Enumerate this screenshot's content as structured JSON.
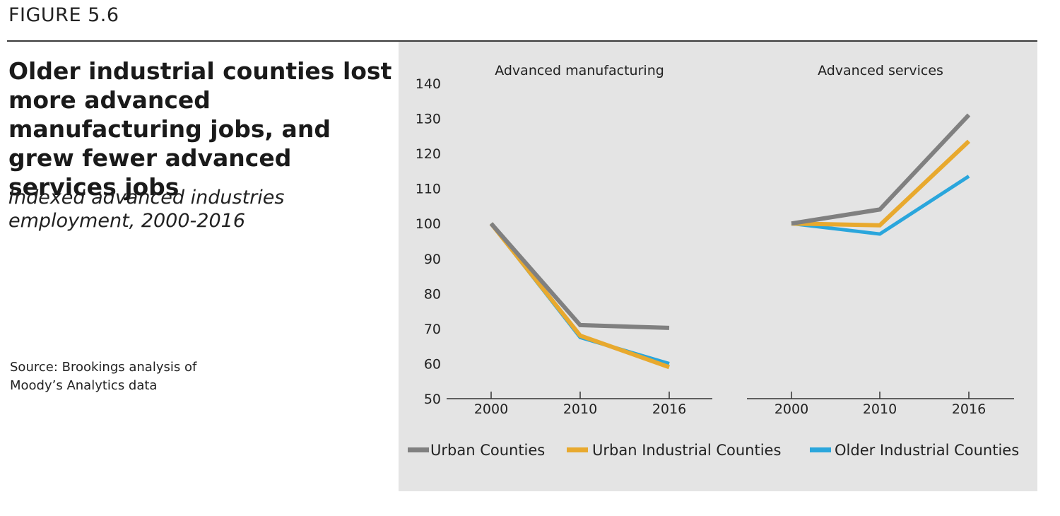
{
  "figure_label": "FIGURE 5.6",
  "title": "Older industrial counties lost more advanced manufacturing jobs, and grew fewer advanced services jobs",
  "subtitle": "Indexed advanced industries employment, 2000-2016",
  "source": "Source: Brookings analysis of Moody’s Analytics data",
  "colors": {
    "urban": "#808080",
    "urban_industrial": "#e8a92e",
    "older_industrial": "#2aa6dc",
    "panel_bg": "#e4e4e4",
    "axis": "#333333"
  },
  "chart_data": {
    "type": "line",
    "ylim": [
      50,
      140
    ],
    "yticks": [
      50,
      60,
      70,
      80,
      90,
      100,
      110,
      120,
      130,
      140
    ],
    "legend": {
      "position": "bottom",
      "entries": [
        "Urban Counties",
        "Urban Industrial Counties",
        "Older Industrial Counties"
      ]
    },
    "panels": [
      {
        "title": "Advanced manufacturing",
        "x": [
          "2000",
          "2010",
          "2016"
        ],
        "series": [
          {
            "name": "Urban Counties",
            "color_key": "urban",
            "values": [
              100,
              71,
              70.2
            ]
          },
          {
            "name": "Urban Industrial Counties",
            "color_key": "urban_industrial",
            "values": [
              100,
              68,
              59
            ]
          },
          {
            "name": "Older Industrial Counties",
            "color_key": "older_industrial",
            "values": [
              100,
              67.5,
              60
            ]
          }
        ]
      },
      {
        "title": "Advanced services",
        "x": [
          "2000",
          "2010",
          "2016"
        ],
        "series": [
          {
            "name": "Urban Counties",
            "color_key": "urban",
            "values": [
              100,
              104,
              131
            ]
          },
          {
            "name": "Urban Industrial Counties",
            "color_key": "urban_industrial",
            "values": [
              100,
              99.5,
              123.5
            ]
          },
          {
            "name": "Older Industrial Counties",
            "color_key": "older_industrial",
            "values": [
              100,
              97,
              113.5
            ]
          }
        ]
      }
    ]
  }
}
